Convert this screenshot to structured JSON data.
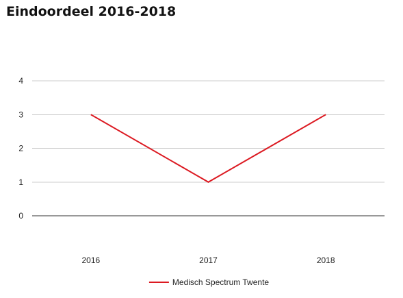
{
  "chart_data": {
    "type": "line",
    "title": "Eindoordeel 2016-2018",
    "xlabel": "",
    "ylabel": "",
    "categories": [
      "2016",
      "2017",
      "2018"
    ],
    "ylim": [
      0,
      4
    ],
    "yticks": [
      0,
      1,
      2,
      3,
      4
    ],
    "grid": true,
    "legend_position": "bottom",
    "series": [
      {
        "name": "Medisch Spectrum Twente",
        "values": [
          3,
          1,
          3
        ],
        "color": "#dc1a22"
      }
    ]
  }
}
